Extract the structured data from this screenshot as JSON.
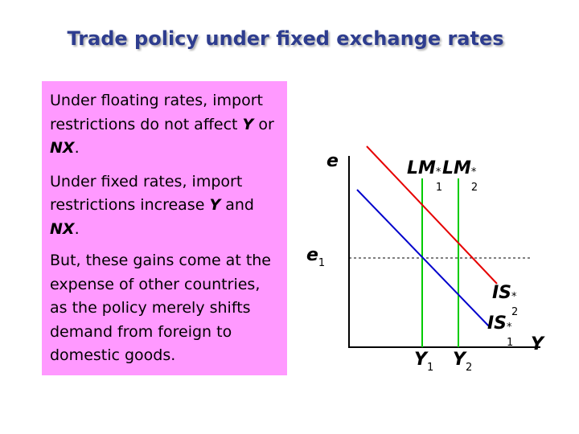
{
  "title": "Trade policy under fixed exchange rates",
  "textbox": {
    "p1": {
      "pre": "Under floating rates, import restrictions do not affect ",
      "v1": "Y",
      "mid": " or ",
      "v2": "NX",
      "post": "."
    },
    "p2": {
      "pre": "Under fixed rates, import restrictions increase ",
      "v1": "Y",
      "mid": " and ",
      "v2": "NX",
      "post": "."
    },
    "p3": "But, these gains come at the expense of other countries, as the policy merely shifts demand from foreign to domestic goods."
  },
  "diagram": {
    "y_axis_label": "e",
    "x_axis_label": "Y",
    "e1_label": {
      "main": "e",
      "sub": "1"
    },
    "Y1_label": {
      "main": "Y",
      "sub": "1"
    },
    "Y2_label": {
      "main": "Y",
      "sub": "2"
    },
    "LM1_label": {
      "main": "LM",
      "sup": "*",
      "sub": "1"
    },
    "LM2_label": {
      "main": "LM",
      "sup": "*",
      "sub": "2"
    },
    "IS1_label": {
      "main": "IS",
      "sup": "*",
      "sub": "1"
    },
    "IS2_label": {
      "main": "IS",
      "sup": "*",
      "sub": "2"
    },
    "colors": {
      "LM1": "#00cc00",
      "LM2": "#00cc00",
      "IS1": "#0000cc",
      "IS2": "#e60000",
      "axis": "#000000",
      "dashed": "#000000"
    }
  }
}
